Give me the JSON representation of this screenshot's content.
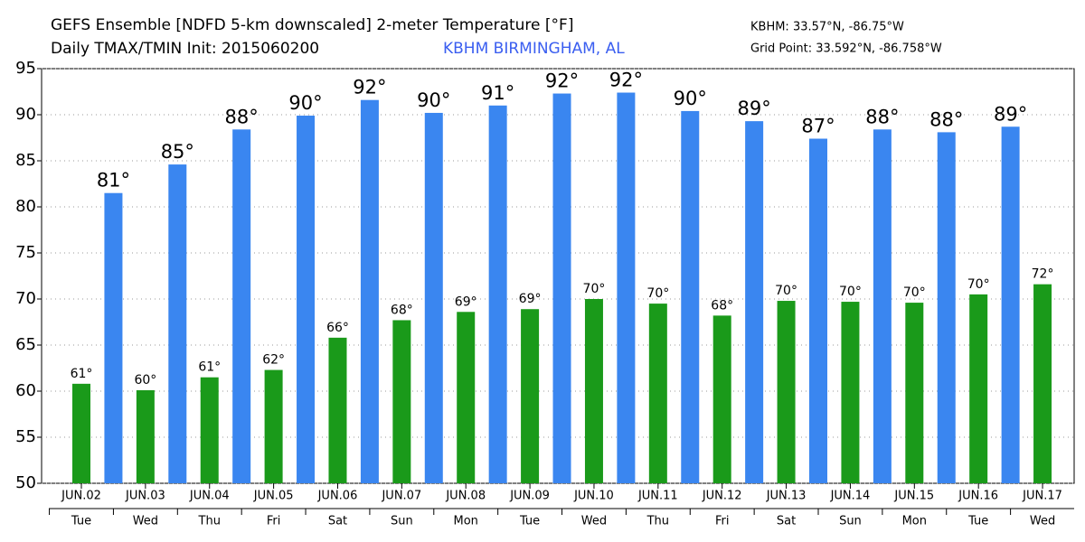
{
  "chart_data": {
    "type": "bar",
    "title": "GEFS Ensemble [NDFD 5-km downscaled] 2-meter Temperature [°F]",
    "subtitle": "Daily TMAX/TMIN Init: 2015060200",
    "station": "KBHM BIRMINGHAM, AL",
    "location": "KBHM: 33.57°N, -86.75°W",
    "grid_point": "Grid Point: 33.592°N, -86.758°W",
    "categories": [
      "JUN.02",
      "JUN.03",
      "JUN.04",
      "JUN.05",
      "JUN.06",
      "JUN.07",
      "JUN.08",
      "JUN.09",
      "JUN.10",
      "JUN.11",
      "JUN.12",
      "JUN.13",
      "JUN.14",
      "JUN.15",
      "JUN.16",
      "JUN.17"
    ],
    "weekdays": [
      "Tue",
      "Wed",
      "Thu",
      "Fri",
      "Sat",
      "Sun",
      "Mon",
      "Tue",
      "Wed",
      "Thu",
      "Fri",
      "Sat",
      "Sun",
      "Mon",
      "Tue",
      "Wed"
    ],
    "series": [
      {
        "color": "#1a9a1a",
        "values": [
          60.8,
          60.1,
          61.5,
          62.3,
          65.8,
          67.7,
          68.6,
          68.9,
          70.0,
          69.5,
          68.2,
          69.8,
          69.7,
          69.6,
          70.5,
          71.6
        ],
        "value_labels": [
          "61°",
          "60°",
          "61°",
          "62°",
          "66°",
          "68°",
          "69°",
          "69°",
          "70°",
          "70°",
          "68°",
          "70°",
          "70°",
          "70°",
          "70°",
          "72°"
        ]
      },
      {
        "color": "#3a86f0",
        "values": [
          81.5,
          84.6,
          88.4,
          89.9,
          91.6,
          90.2,
          91.0,
          92.3,
          92.4,
          90.4,
          89.3,
          87.4,
          88.4,
          88.1,
          88.7,
          null
        ],
        "value_labels": [
          "81°",
          "85°",
          "88°",
          "90°",
          "92°",
          "90°",
          "91°",
          "92°",
          "92°",
          "90°",
          "89°",
          "87°",
          "88°",
          "88°",
          "89°",
          null
        ]
      }
    ],
    "ylim": [
      50,
      95
    ],
    "yticks": [
      50,
      55,
      60,
      65,
      70,
      75,
      80,
      85,
      90,
      95
    ],
    "grid": true
  }
}
